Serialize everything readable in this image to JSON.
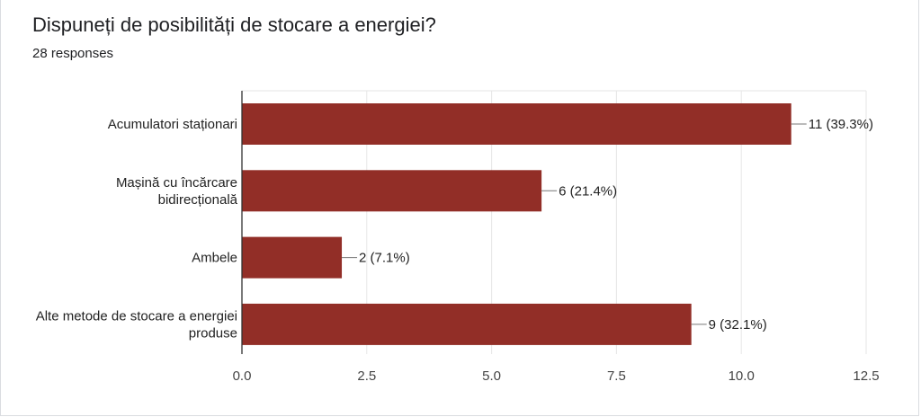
{
  "form": {
    "question": "Dispuneți de posibilități de stocare a energiei?",
    "responses": "28 responses"
  },
  "colors": {
    "bar": "#922e27",
    "grid": "#e6e6e6",
    "axis": "#333333",
    "leader": "#777777"
  },
  "chart_data": {
    "type": "bar",
    "orientation": "horizontal",
    "categories": [
      [
        "Acumulatori staționari"
      ],
      [
        "Mașină cu încărcare",
        "bidirecțională"
      ],
      [
        "Ambele"
      ],
      [
        "Alte metode de stocare a energiei",
        "produse"
      ]
    ],
    "values": [
      11,
      6,
      2,
      9
    ],
    "data_labels": [
      "11 (39.3%)",
      "6 (21.4%)",
      "2 (7.1%)",
      "9 (32.1%)"
    ],
    "xlim": [
      0,
      12.5
    ],
    "xticks": [
      0,
      2.5,
      5,
      7.5,
      10,
      12.5
    ],
    "xtick_labels": [
      "0.0",
      "2.5",
      "5.0",
      "7.5",
      "10.0",
      "12.5"
    ],
    "grid": true
  }
}
